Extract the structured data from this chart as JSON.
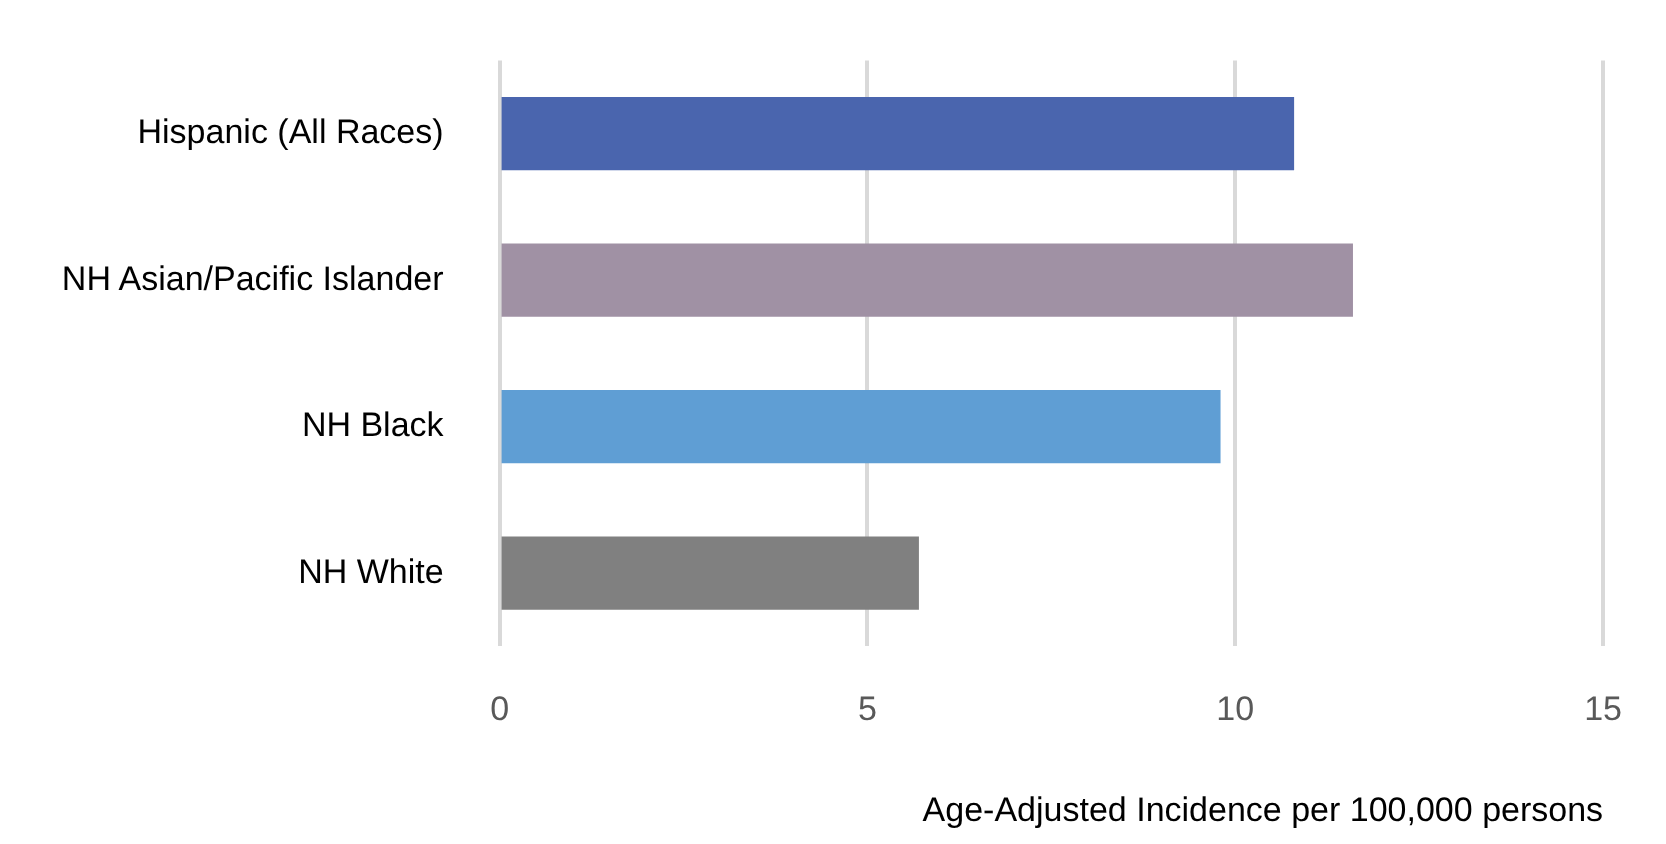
{
  "chart_data": {
    "type": "bar",
    "orientation": "horizontal",
    "xlabel": "Age-Adjusted Incidence per 100,000 persons",
    "categories": [
      "Hispanic (All Races)",
      "NH Asian/Pacific Islander",
      "NH Black",
      "NH White"
    ],
    "values": [
      10.8,
      11.6,
      9.8,
      5.7
    ],
    "colors": [
      "#4a65ae",
      "#a091a4",
      "#5f9ed4",
      "#808080"
    ],
    "xlim": [
      0,
      15
    ],
    "xticks": [
      0,
      5,
      10,
      15
    ],
    "grid": "x",
    "legend": false
  }
}
